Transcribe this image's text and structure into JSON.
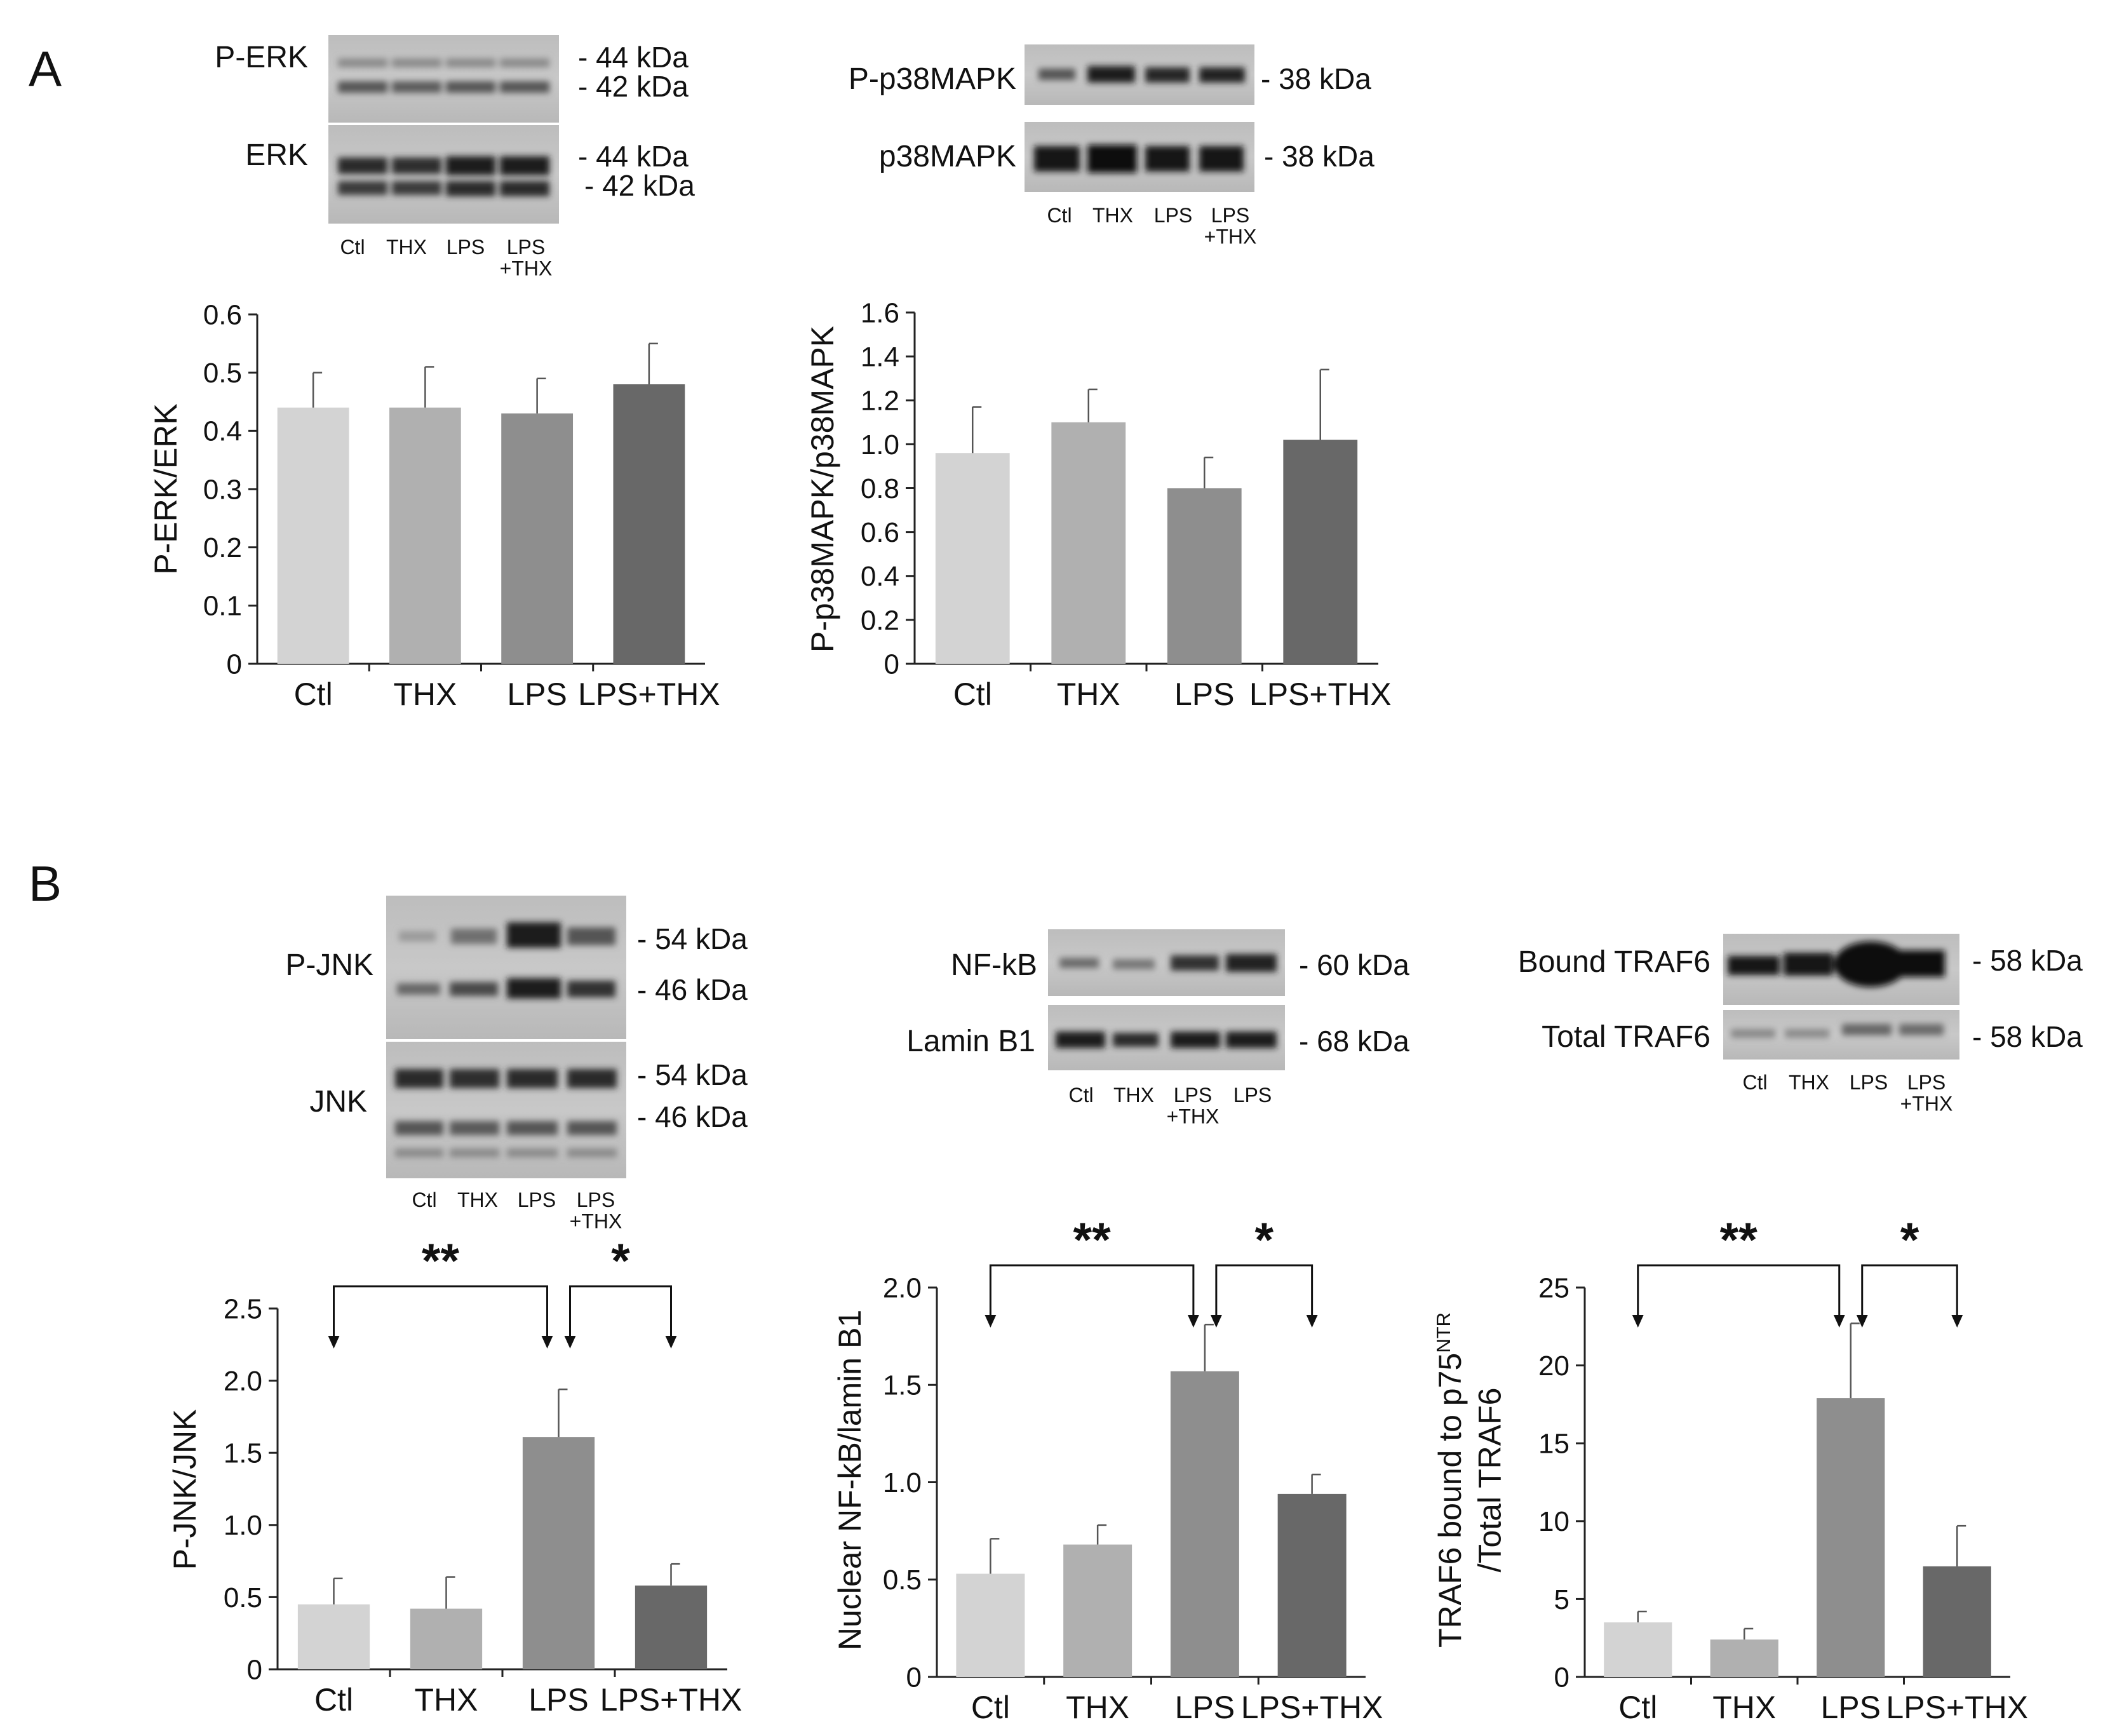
{
  "panels": {
    "A": {
      "label": "A",
      "blots": [
        {
          "proteins": [
            "P-ERK",
            "ERK"
          ],
          "mw_markers": [
            [
              "- 44 kDa",
              "- 42 kDa"
            ],
            [
              "- 44 kDa",
              "- 42 kDa"
            ]
          ],
          "lanes": [
            "Ctl",
            "THX",
            "LPS",
            "LPS\n+THX"
          ]
        },
        {
          "proteins": [
            "P-p38MAPK",
            "p38MAPK"
          ],
          "mw_markers": [
            [
              "- 38 kDa"
            ],
            [
              "- 38 kDa"
            ]
          ],
          "lanes": [
            "Ctl",
            "THX",
            "LPS",
            "LPS\n+THX"
          ]
        }
      ]
    },
    "B": {
      "label": "B",
      "blots": [
        {
          "proteins": [
            "P-JNK",
            "JNK"
          ],
          "mw_markers": [
            [
              "- 54 kDa",
              "- 46 kDa"
            ],
            [
              "- 54 kDa",
              "- 46 kDa"
            ]
          ],
          "lanes": [
            "Ctl",
            "THX",
            "LPS",
            "LPS\n+THX"
          ]
        },
        {
          "proteins": [
            "NF-kB",
            "Lamin B1"
          ],
          "mw_markers": [
            [
              "- 60 kDa"
            ],
            [
              "- 68 kDa"
            ]
          ],
          "lanes": [
            "Ctl",
            "THX",
            "LPS\n+THX",
            "LPS"
          ]
        },
        {
          "proteins": [
            "Bound TRAF6",
            "Total TRAF6"
          ],
          "mw_markers": [
            [
              "- 58 kDa"
            ],
            [
              "- 58 kDa"
            ]
          ],
          "lanes": [
            "Ctl",
            "THX",
            "LPS",
            "LPS\n+THX"
          ]
        }
      ]
    }
  },
  "bar_colors": [
    "#d3d3d3",
    "#b0b0b0",
    "#8e8e8e",
    "#686868"
  ],
  "chart_data": [
    {
      "panel": "A",
      "type": "bar",
      "categories": [
        "Ctl",
        "THX",
        "LPS",
        "LPS+THX"
      ],
      "values": [
        0.44,
        0.44,
        0.43,
        0.48
      ],
      "errors": [
        0.06,
        0.07,
        0.06,
        0.07
      ],
      "ylabel": "P-ERK/ERK",
      "ylim": [
        0,
        0.6
      ],
      "yticks": [
        "0",
        "0.1",
        "0.2",
        "0.3",
        "0.4",
        "0.5",
        "0.6"
      ],
      "significance": []
    },
    {
      "panel": "A",
      "type": "bar",
      "categories": [
        "Ctl",
        "THX",
        "LPS",
        "LPS+THX"
      ],
      "values": [
        0.96,
        1.1,
        0.8,
        1.02
      ],
      "errors": [
        0.21,
        0.15,
        0.14,
        0.32
      ],
      "ylabel": "P-p38MAPK/p38MAPK",
      "ylim": [
        0,
        1.6
      ],
      "yticks": [
        "0",
        "0.2",
        "0.4",
        "0.6",
        "0.8",
        "1.0",
        "1.2",
        "1.4",
        "1.6"
      ],
      "significance": []
    },
    {
      "panel": "B",
      "type": "bar",
      "categories": [
        "Ctl",
        "THX",
        "LPS",
        "LPS+THX"
      ],
      "values": [
        0.45,
        0.42,
        1.61,
        0.58
      ],
      "errors": [
        0.18,
        0.22,
        0.33,
        0.15
      ],
      "ylabel": "P-JNK/JNK",
      "ylim": [
        0,
        2.5
      ],
      "yticks": [
        "0",
        "0.5",
        "1.0",
        "1.5",
        "2.0",
        "2.5"
      ],
      "significance": [
        {
          "from": 0,
          "to": 2,
          "label": "**"
        },
        {
          "from": 2,
          "to": 3,
          "label": "*"
        }
      ]
    },
    {
      "panel": "B",
      "type": "bar",
      "categories": [
        "Ctl",
        "THX",
        "LPS",
        "LPS+THX"
      ],
      "values": [
        0.53,
        0.68,
        1.57,
        0.94
      ],
      "errors": [
        0.18,
        0.1,
        0.24,
        0.1
      ],
      "ylabel": "Nuclear NF-kB/lamin B1",
      "ylim": [
        0,
        2.0
      ],
      "yticks": [
        "0",
        "0.5",
        "1.0",
        "1.5",
        "2.0"
      ],
      "significance": [
        {
          "from": 0,
          "to": 2,
          "label": "**"
        },
        {
          "from": 2,
          "to": 3,
          "label": "*"
        }
      ]
    },
    {
      "panel": "B",
      "type": "bar",
      "categories": [
        "Ctl",
        "THX",
        "LPS",
        "LPS+THX"
      ],
      "values": [
        3.5,
        2.4,
        17.9,
        7.1
      ],
      "errors": [
        0.7,
        0.7,
        4.8,
        2.6
      ],
      "ylabel": "TRAF6 bound to p75NTR /Total TRAF6",
      "ylabel_lines": [
        "TRAF6 bound to p75",
        "NTR",
        "/Total TRAF6"
      ],
      "ylim": [
        0,
        25
      ],
      "yticks": [
        "0",
        "5",
        "10",
        "15",
        "20",
        "25"
      ],
      "significance": [
        {
          "from": 0,
          "to": 2,
          "label": "**"
        },
        {
          "from": 2,
          "to": 3,
          "label": "*"
        }
      ]
    }
  ]
}
